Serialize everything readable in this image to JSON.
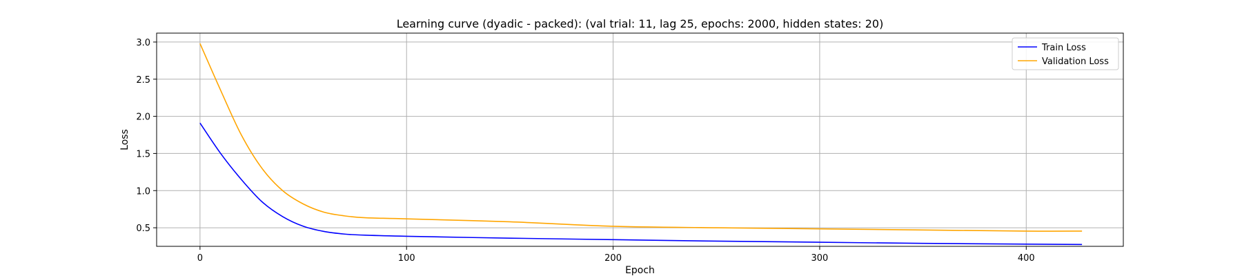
{
  "chart_data": {
    "type": "line",
    "title": "Learning curve (dyadic - packed): (val trial: 11, lag 25, epochs: 2000, hidden states: 20)",
    "xlabel": "Epoch",
    "ylabel": "Loss",
    "xlim": [
      -21,
      447
    ],
    "ylim": [
      0.25,
      3.12
    ],
    "xticks": [
      "0",
      "100",
      "200",
      "300",
      "400"
    ],
    "yticks": [
      "0.5",
      "1.0",
      "1.5",
      "2.0",
      "2.5",
      "3.0"
    ],
    "grid": true,
    "legend_position": "top-right",
    "series": [
      {
        "name": "Train Loss",
        "color": "#0000ff",
        "x": [
          0,
          10,
          20,
          30,
          40,
          50,
          60,
          70,
          80,
          100,
          150,
          200,
          250,
          300,
          350,
          400,
          427
        ],
        "y": [
          1.91,
          1.5,
          1.15,
          0.85,
          0.65,
          0.52,
          0.45,
          0.415,
          0.4,
          0.385,
          0.36,
          0.34,
          0.32,
          0.305,
          0.29,
          0.28,
          0.275
        ]
      },
      {
        "name": "Validation Loss",
        "color": "#ffa500",
        "x": [
          0,
          10,
          20,
          30,
          40,
          50,
          60,
          70,
          80,
          100,
          150,
          200,
          250,
          300,
          350,
          400,
          427
        ],
        "y": [
          2.98,
          2.35,
          1.75,
          1.3,
          1.0,
          0.82,
          0.71,
          0.66,
          0.635,
          0.62,
          0.58,
          0.52,
          0.5,
          0.485,
          0.47,
          0.455,
          0.455
        ]
      }
    ]
  }
}
